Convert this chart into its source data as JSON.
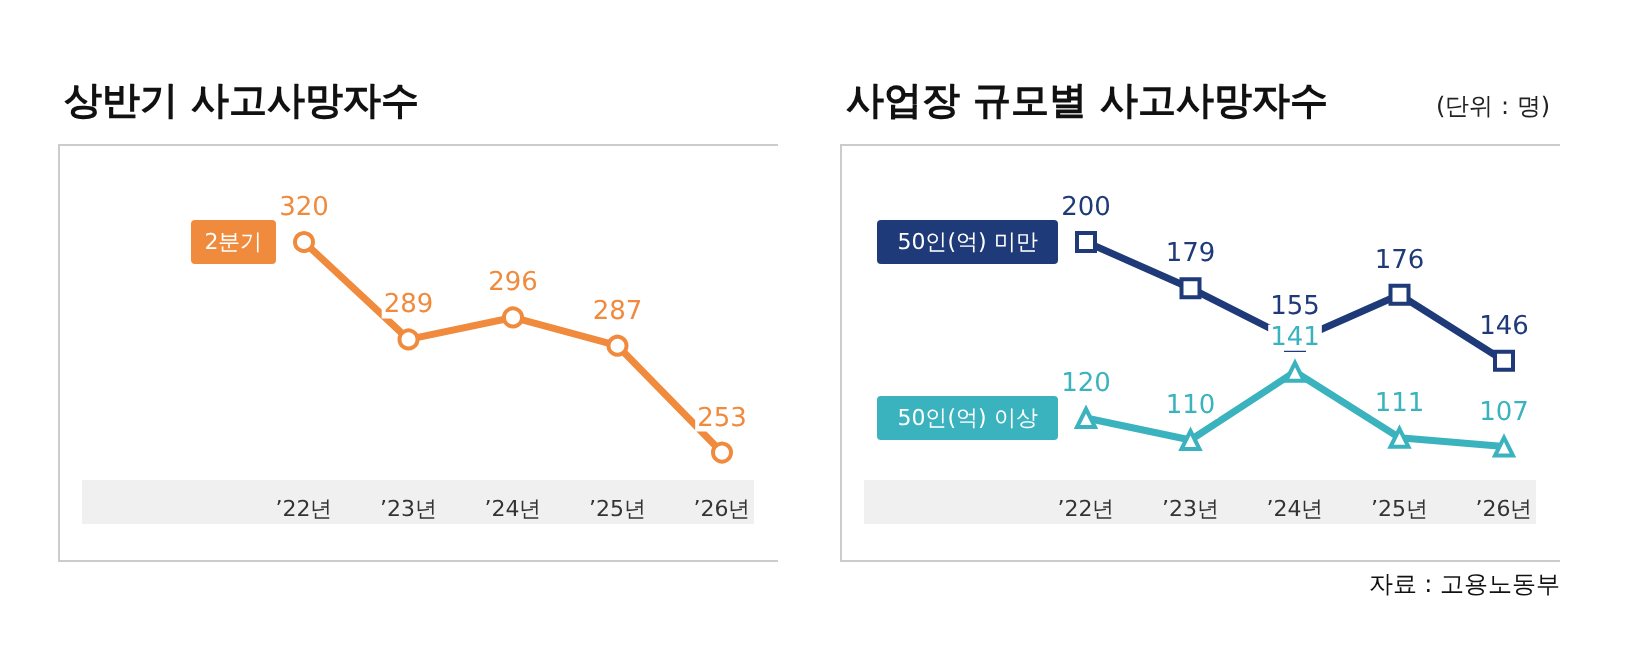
{
  "chart_data": [
    {
      "type": "line",
      "title": "상반기 사고사망자수",
      "legend": "left",
      "categories": [
        "’22년",
        "’23년",
        "’24년",
        "’25년",
        "’26년"
      ],
      "data_labels": true,
      "series": [
        {
          "name": "2분기",
          "color": "#f08a3c",
          "values": [
            320,
            289,
            296,
            287,
            253
          ],
          "marker": "circle"
        }
      ]
    },
    {
      "type": "line",
      "title": "사업장 규모별 사고사망자수",
      "subtitle": "(단위 : 명)",
      "legend": "left",
      "categories": [
        "’22년",
        "’23년",
        "’24년",
        "’25년",
        "’26년"
      ],
      "data_labels": true,
      "series": [
        {
          "name": "50인(억) 미만",
          "color": "#1f3a78",
          "values": [
            200,
            179,
            155,
            176,
            146
          ],
          "marker": "square"
        },
        {
          "name": "50인(억) 이상",
          "color": "#3bb3bf",
          "values": [
            120,
            110,
            141,
            111,
            107
          ],
          "marker": "triangle"
        }
      ],
      "annotations": [
        "자료 : 고용노동부"
      ]
    }
  ]
}
